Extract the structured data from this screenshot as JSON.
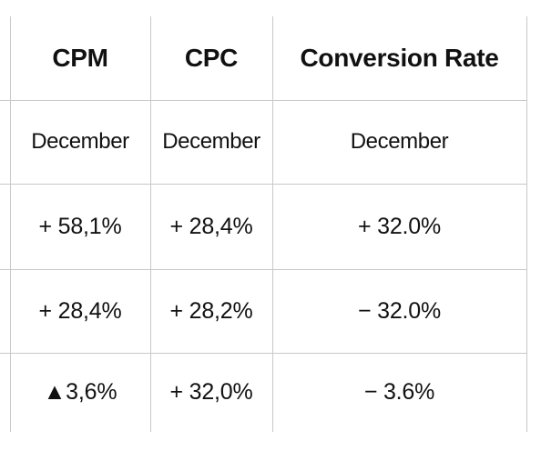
{
  "table": {
    "headers": [
      "",
      "CPM",
      "CPC",
      "Conversion Rate"
    ],
    "period_row": [
      "",
      "December",
      "December",
      "December"
    ],
    "rows": [
      [
        "",
        "+ 58,1%",
        "+ 28,4%",
        "+ 32.0%"
      ],
      [
        "",
        "+ 28,4%",
        "+ 28,2%",
        "− 32.0%"
      ],
      [
        "",
        "▲3,6%",
        "+ 32,0%",
        "− 3.6%"
      ]
    ]
  }
}
